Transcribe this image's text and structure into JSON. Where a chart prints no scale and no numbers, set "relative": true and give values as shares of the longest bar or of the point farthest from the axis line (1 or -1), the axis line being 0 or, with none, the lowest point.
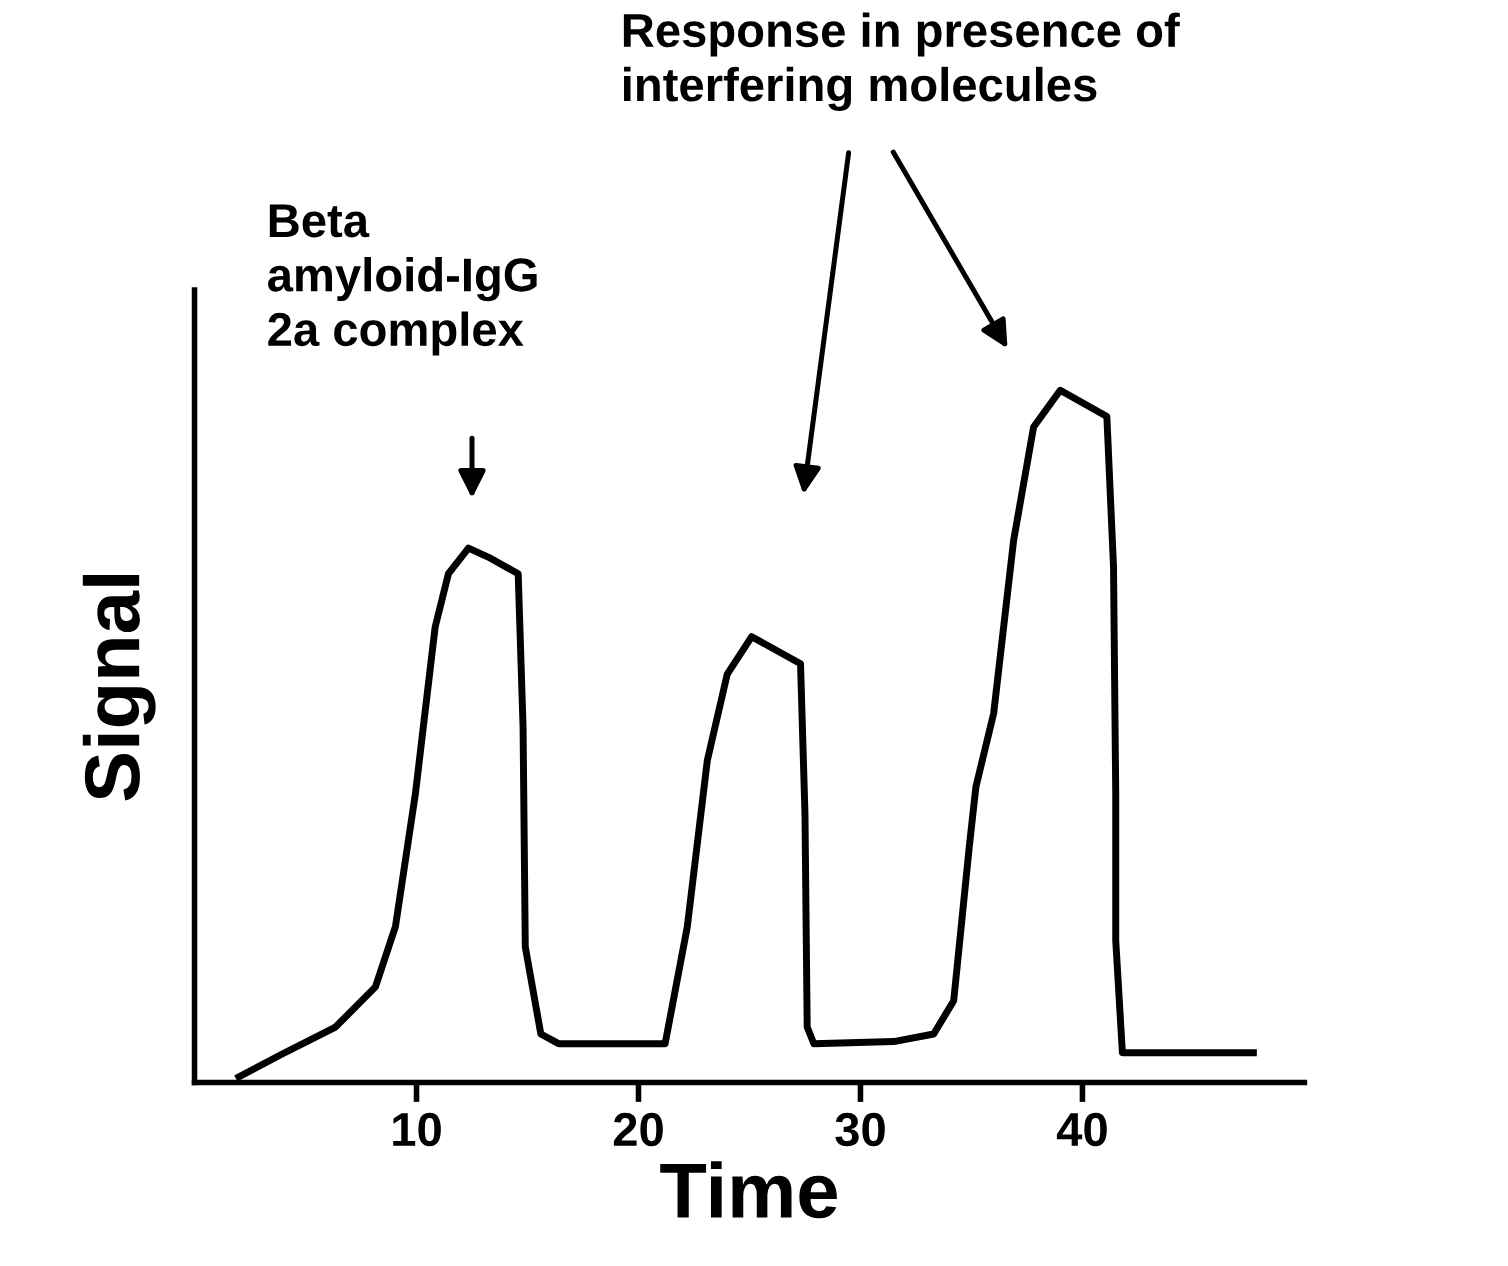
{
  "chart_data": {
    "type": "line",
    "relative": true,
    "xlabel": "Time",
    "ylabel": "Signal",
    "xlim": [
      0,
      50
    ],
    "xticks": [
      10,
      20,
      30,
      40
    ],
    "grid": false,
    "marker": "none",
    "line_style": "solid",
    "annotations": [
      "Beta\namyloid-IgG\n2a complex",
      "Response in presence of\ninterfering molecules"
    ],
    "series": [
      {
        "color": "#000000",
        "x": [
          2.0,
          3.95,
          6.35,
          8.15,
          9.05,
          9.95,
          10.84,
          11.44,
          12.34,
          13.23,
          14.58,
          14.8,
          14.9,
          15.6,
          16.4,
          21.2,
          22.2,
          23.1,
          24.0,
          25.1,
          27.3,
          27.5,
          27.6,
          27.9,
          31.5,
          33.3,
          34.2,
          34.9,
          35.2,
          36.0,
          36.9,
          37.8,
          39.0,
          41.1,
          41.4,
          41.5,
          41.5,
          41.8,
          47.7
        ],
        "values": [
          0.008,
          0.041,
          0.08,
          0.138,
          0.225,
          0.417,
          0.658,
          0.735,
          0.772,
          0.759,
          0.735,
          0.514,
          0.196,
          0.07,
          0.056,
          0.056,
          0.225,
          0.465,
          0.59,
          0.644,
          0.605,
          0.388,
          0.08,
          0.056,
          0.059,
          0.07,
          0.118,
          0.34,
          0.427,
          0.533,
          0.783,
          0.947,
          1.0,
          0.962,
          0.745,
          0.417,
          0.205,
          0.043,
          0.043
        ]
      }
    ]
  }
}
